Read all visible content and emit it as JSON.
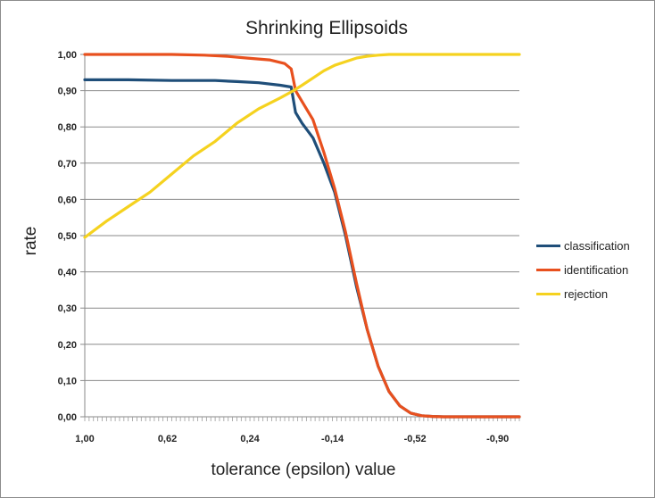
{
  "chart_data": {
    "type": "line",
    "title": "Shrinking Ellipsoids",
    "xlabel": "tolerance (epsilon) value",
    "ylabel": "rate",
    "xlim": [
      1.0,
      -1.0
    ],
    "ylim": [
      0,
      1
    ],
    "x_tick_labels": [
      "1,00",
      "0,62",
      "0,24",
      "-0,14",
      "-0,52",
      "-0,90"
    ],
    "x_tick_values": [
      1.0,
      0.62,
      0.24,
      -0.14,
      -0.52,
      -0.9
    ],
    "y_tick_labels": [
      "0,00",
      "0,10",
      "0,20",
      "0,30",
      "0,40",
      "0,50",
      "0,60",
      "0,70",
      "0,80",
      "0,90",
      "1,00"
    ],
    "y_tick_values": [
      0,
      0.1,
      0.2,
      0.3,
      0.4,
      0.5,
      0.6,
      0.7,
      0.8,
      0.9,
      1.0
    ],
    "grid": "horizontal",
    "legend_position": "right",
    "series": [
      {
        "name": "classification",
        "color": "#1f4e79",
        "x": [
          1.0,
          0.8,
          0.6,
          0.4,
          0.3,
          0.2,
          0.1,
          0.05,
          0.03,
          0.0,
          -0.05,
          -0.1,
          -0.15,
          -0.2,
          -0.25,
          -0.3,
          -0.35,
          -0.4,
          -0.45,
          -0.5,
          -0.55,
          -0.6,
          -0.65,
          -0.7,
          -0.8,
          -0.9,
          -1.0
        ],
        "y": [
          0.93,
          0.93,
          0.928,
          0.928,
          0.925,
          0.922,
          0.915,
          0.91,
          0.84,
          0.81,
          0.77,
          0.7,
          0.62,
          0.5,
          0.36,
          0.24,
          0.14,
          0.07,
          0.03,
          0.01,
          0.003,
          0.001,
          0.0,
          0.0,
          0.0,
          0.0,
          0.0
        ]
      },
      {
        "name": "identification",
        "color": "#e8501e",
        "x": [
          1.0,
          0.8,
          0.6,
          0.45,
          0.35,
          0.25,
          0.15,
          0.08,
          0.05,
          0.04,
          0.03,
          0.0,
          -0.05,
          -0.1,
          -0.15,
          -0.2,
          -0.25,
          -0.3,
          -0.35,
          -0.4,
          -0.45,
          -0.5,
          -0.55,
          -0.6,
          -0.65,
          -0.7,
          -0.8,
          -0.9,
          -1.0
        ],
        "y": [
          1.0,
          1.0,
          1.0,
          0.998,
          0.995,
          0.99,
          0.985,
          0.975,
          0.96,
          0.93,
          0.9,
          0.87,
          0.82,
          0.73,
          0.63,
          0.51,
          0.37,
          0.24,
          0.14,
          0.07,
          0.03,
          0.01,
          0.003,
          0.001,
          0.0,
          0.0,
          0.0,
          0.0,
          0.0
        ]
      },
      {
        "name": "rejection",
        "color": "#f5d21f",
        "x": [
          1.0,
          0.9,
          0.8,
          0.7,
          0.6,
          0.5,
          0.4,
          0.3,
          0.2,
          0.1,
          0.04,
          0.0,
          -0.05,
          -0.1,
          -0.15,
          -0.2,
          -0.25,
          -0.3,
          -0.35,
          -0.4,
          -0.5,
          -0.6,
          -0.7,
          -0.8,
          -0.9,
          -1.0
        ],
        "y": [
          0.495,
          0.54,
          0.58,
          0.62,
          0.67,
          0.72,
          0.76,
          0.81,
          0.85,
          0.88,
          0.9,
          0.915,
          0.935,
          0.955,
          0.97,
          0.98,
          0.99,
          0.995,
          0.998,
          1.0,
          1.0,
          1.0,
          1.0,
          1.0,
          1.0,
          1.0
        ]
      }
    ]
  }
}
